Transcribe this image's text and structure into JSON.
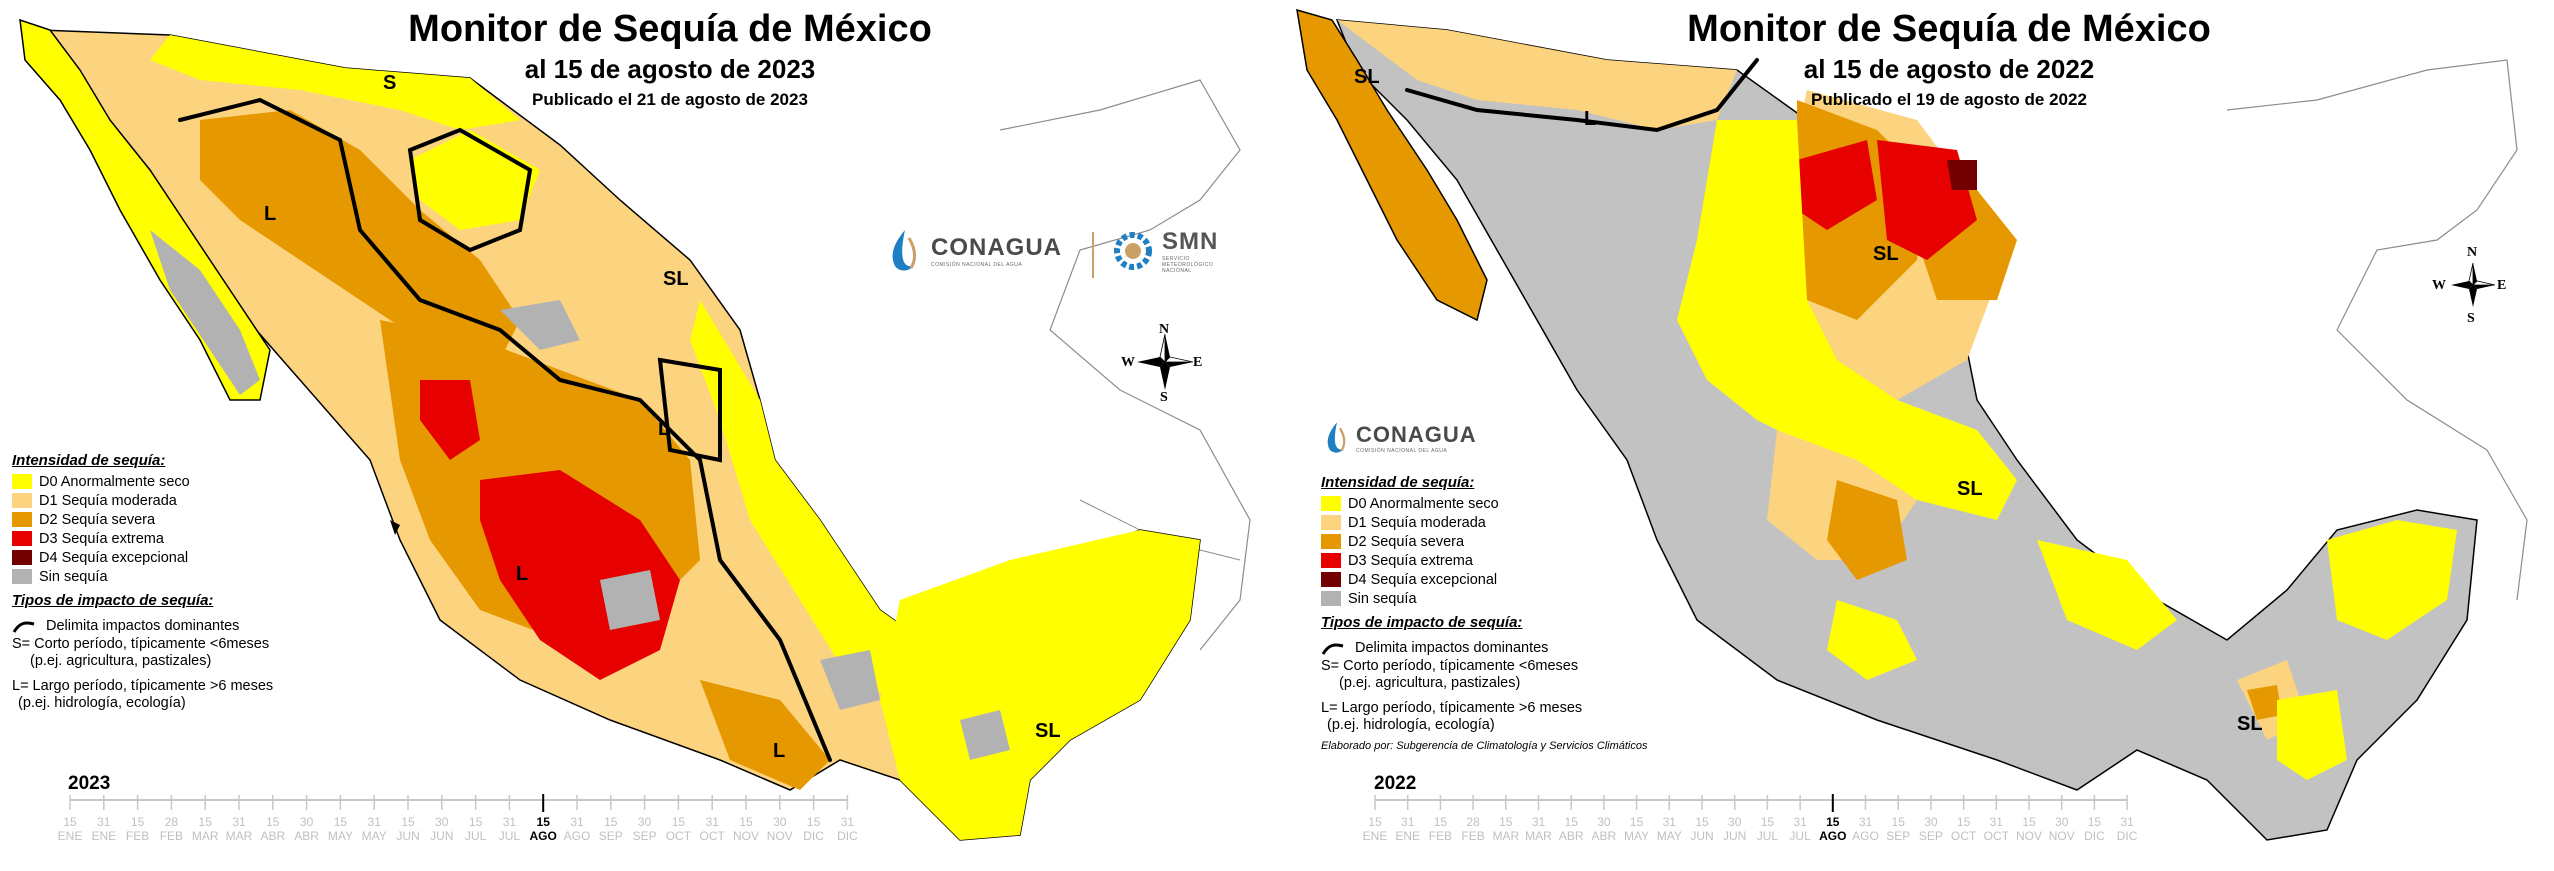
{
  "colors": {
    "D0": "#ffff00",
    "D1": "#fcd37f",
    "D2": "#e69800",
    "D3": "#e60000",
    "D4": "#730000",
    "none": "#b2b2b2",
    "terrain": "#c2c2c2"
  },
  "panels": [
    {
      "title": "Monitor de Sequía de México",
      "subtitle": "al 15 de agosto de 2023",
      "published": "Publicado el 21 de agosto de 2023",
      "year": "2023",
      "logos": {
        "conagua": "CONAGUA",
        "conagua_sub": "COMISIÓN NACIONAL DEL AGUA",
        "smn": "SMN",
        "smn_sub": "SERVICIO METEOROLÓGICO NACIONAL"
      },
      "compass": {
        "n": "N",
        "s": "S",
        "e": "E",
        "w": "W"
      },
      "map_labels": [
        "S",
        "L",
        "SL",
        "L",
        "L",
        "L",
        "SL"
      ],
      "legend": {
        "heading": "Intensidad de sequía:",
        "items": [
          {
            "code": "D0",
            "label": "D0 Anormalmente seco"
          },
          {
            "code": "D1",
            "label": "D1 Sequía moderada"
          },
          {
            "code": "D2",
            "label": "D2 Sequía severa"
          },
          {
            "code": "D3",
            "label": "D3 Sequía extrema"
          },
          {
            "code": "D4",
            "label": "D4 Sequía excepcional"
          },
          {
            "code": "none",
            "label": "Sin sequía"
          }
        ],
        "impact_heading": "Tipos de impacto de sequía:",
        "boundary": "Delimita impactos dominantes",
        "short_1": "S= Corto período, típicamente <6meses",
        "short_2": "(p.ej. agricultura, pastizales)",
        "long_1": "L= Largo período, típicamente >6 meses",
        "long_2": "(p.ej. hidrología, ecología)"
      },
      "timeline": {
        "days": [
          "15",
          "31",
          "15",
          "28",
          "15",
          "31",
          "15",
          "30",
          "15",
          "31",
          "15",
          "30",
          "15",
          "31",
          "15",
          "31",
          "15",
          "30",
          "15",
          "31",
          "15",
          "30",
          "15",
          "31"
        ],
        "months": [
          "ENE",
          "ENE",
          "FEB",
          "FEB",
          "MAR",
          "MAR",
          "ABR",
          "ABR",
          "MAY",
          "MAY",
          "JUN",
          "JUN",
          "JUL",
          "JUL",
          "AGO",
          "AGO",
          "SEP",
          "SEP",
          "OCT",
          "OCT",
          "NOV",
          "NOV",
          "DIC",
          "DIC"
        ],
        "current_index": 14
      }
    },
    {
      "title": "Monitor de Sequía de México",
      "subtitle": "al 15 de agosto de 2022",
      "published": "Publicado el 19 de agosto de 2022",
      "year": "2022",
      "logos": {
        "conagua": "CONAGUA",
        "conagua_sub": "COMISIÓN NACIONAL DEL AGUA"
      },
      "compass": {
        "n": "N",
        "s": "S",
        "e": "E",
        "w": "W"
      },
      "map_labels": [
        "SL",
        "L",
        "SL",
        "SL",
        "SL"
      ],
      "legend": {
        "heading": "Intensidad de sequía:",
        "items": [
          {
            "code": "D0",
            "label": "D0 Anormalmente seco"
          },
          {
            "code": "D1",
            "label": "D1 Sequía moderada"
          },
          {
            "code": "D2",
            "label": "D2 Sequía severa"
          },
          {
            "code": "D3",
            "label": "D3 Sequía extrema"
          },
          {
            "code": "D4",
            "label": "D4 Sequía excepcional"
          },
          {
            "code": "none",
            "label": "Sin sequía"
          }
        ],
        "impact_heading": "Tipos de impacto de sequía:",
        "boundary": "Delimita impactos dominantes",
        "short_1": "S= Corto período, típicamente <6meses",
        "short_2": "(p.ej. agricultura, pastizales)",
        "long_1": "L= Largo período, típicamente >6 meses",
        "long_2": "(p.ej. hidrología, ecología)",
        "credit": "Elaborado por: Subgerencia de Climatología y Servicios Climáticos"
      },
      "timeline": {
        "days": [
          "15",
          "31",
          "15",
          "28",
          "15",
          "31",
          "15",
          "30",
          "15",
          "31",
          "15",
          "30",
          "15",
          "31",
          "15",
          "31",
          "15",
          "30",
          "15",
          "31",
          "15",
          "30",
          "15",
          "31"
        ],
        "months": [
          "ENE",
          "ENE",
          "FEB",
          "FEB",
          "MAR",
          "MAR",
          "ABR",
          "ABR",
          "MAY",
          "MAY",
          "JUN",
          "JUN",
          "JUL",
          "JUL",
          "AGO",
          "AGO",
          "SEP",
          "SEP",
          "OCT",
          "OCT",
          "NOV",
          "NOV",
          "DIC",
          "DIC"
        ],
        "current_index": 14
      }
    }
  ]
}
